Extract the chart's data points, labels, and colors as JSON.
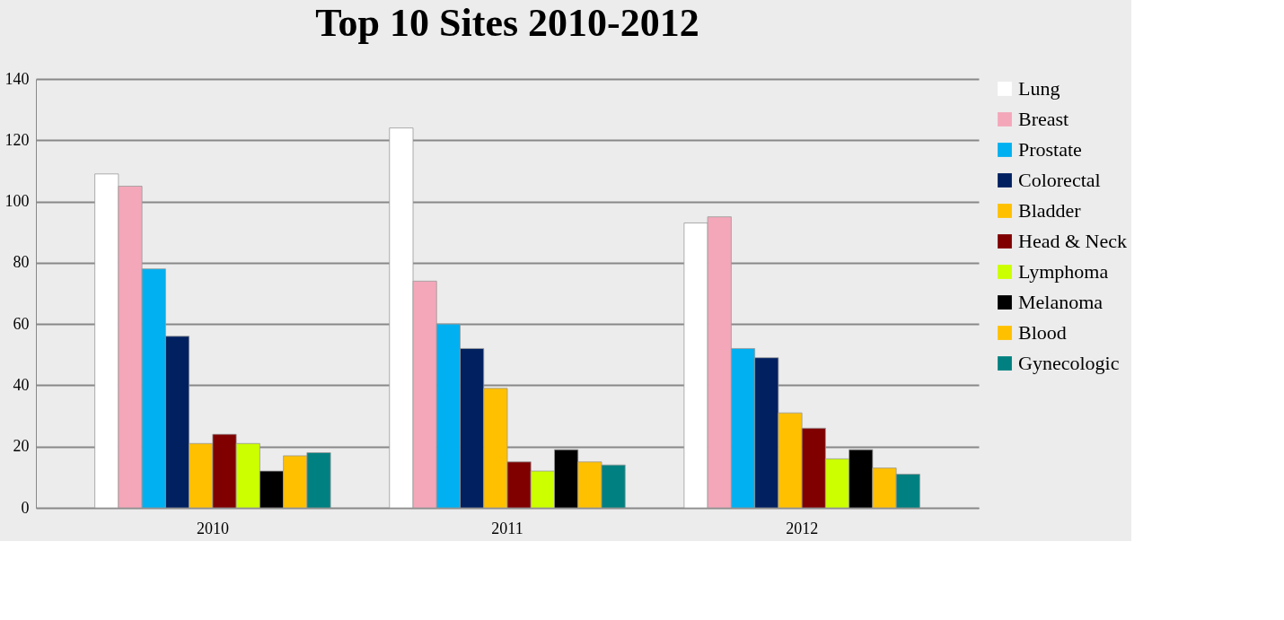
{
  "chart_data": {
    "type": "bar",
    "title": "Top 10 Sites 2010-2012",
    "categories": [
      "2010",
      "2011",
      "2012"
    ],
    "series": [
      {
        "name": "Lung",
        "color": "#ffffff",
        "values": [
          109,
          124,
          93
        ]
      },
      {
        "name": "Breast",
        "color": "#f4a7b9",
        "values": [
          105,
          74,
          95
        ]
      },
      {
        "name": "Prostate",
        "color": "#00b0f0",
        "values": [
          78,
          60,
          52
        ]
      },
      {
        "name": "Colorectal",
        "color": "#002060",
        "values": [
          56,
          52,
          49
        ]
      },
      {
        "name": "Bladder",
        "color": "#ffc000",
        "values": [
          21,
          39,
          31
        ]
      },
      {
        "name": "Head & Neck",
        "color": "#800000",
        "values": [
          24,
          15,
          26
        ]
      },
      {
        "name": "Lymphoma",
        "color": "#ccff00",
        "values": [
          21,
          12,
          16
        ]
      },
      {
        "name": "Melanoma",
        "color": "#000000",
        "values": [
          12,
          19,
          19
        ]
      },
      {
        "name": "Blood",
        "color": "#ffc000",
        "values": [
          17,
          15,
          13
        ]
      },
      {
        "name": "Gynecologic",
        "color": "#008080",
        "values": [
          18,
          14,
          11
        ]
      }
    ],
    "ylim": [
      0,
      140
    ],
    "yticks": [
      0,
      20,
      40,
      60,
      80,
      100,
      120,
      140
    ],
    "grid": "y",
    "legend": "right"
  }
}
